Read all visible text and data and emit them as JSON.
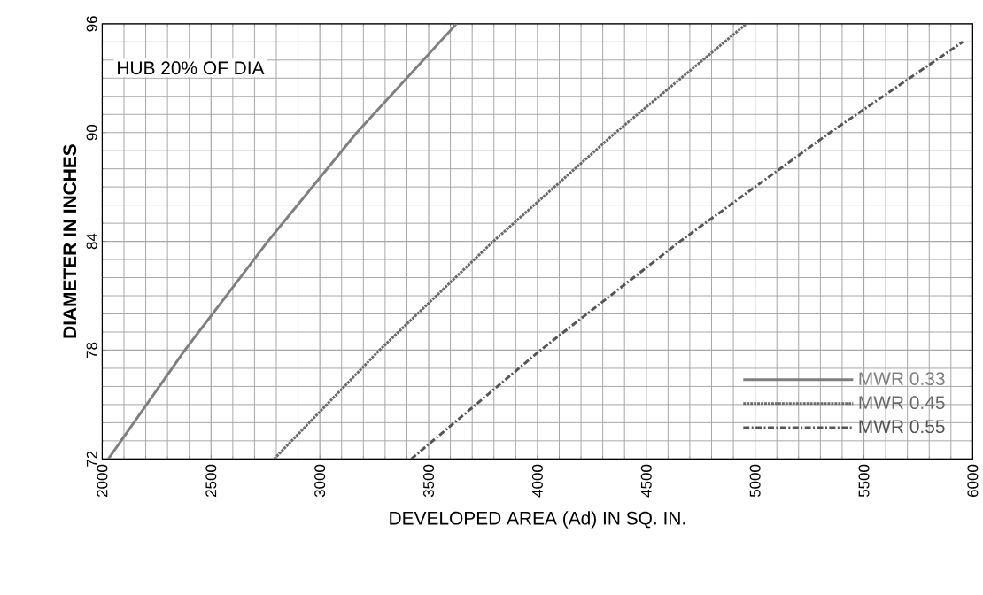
{
  "chart_data": {
    "type": "line",
    "xlabel": "DEVELOPED AREA (Ad) IN SQ. IN.",
    "ylabel": "DIAMETER  IN  INCHES",
    "annotations": [
      "HUB 20% OF DIA"
    ],
    "series": [
      {
        "name": "MWR 0.33",
        "color": "#7f7f7f",
        "line_style": "solid",
        "x": [
          2028,
          2380,
          2761,
          3170,
          3628
        ],
        "values": [
          72,
          78,
          84,
          90,
          96
        ]
      },
      {
        "name": "MWR 0.45",
        "color": "#6a6a6a",
        "line_style": "dotted",
        "x": [
          2790,
          3274,
          3797,
          4359,
          4960
        ],
        "values": [
          72,
          78,
          84,
          90,
          96
        ]
      },
      {
        "name": "MWR 0.55",
        "color": "#555555",
        "line_style": "dashed",
        "x": [
          3420,
          4014,
          4655,
          5344,
          5954
        ],
        "values": [
          72,
          78,
          84,
          90,
          95
        ]
      }
    ],
    "xlim": [
      2000,
      6000
    ],
    "ylim": [
      72,
      96
    ],
    "xticks": [
      2000,
      2500,
      3000,
      3500,
      4000,
      4500,
      5000,
      5500,
      6000
    ],
    "yticks": [
      72,
      78,
      84,
      90,
      96
    ],
    "grid": true,
    "legend": "bottom right",
    "marker": "none"
  }
}
